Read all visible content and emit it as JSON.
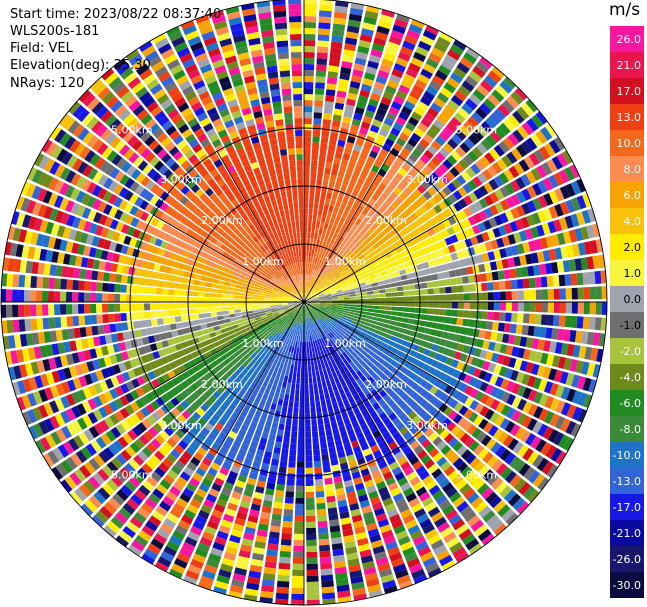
{
  "info": {
    "start_time": "Start time: 2023/08/22 08:37:40",
    "instrument": "WLS200s-181",
    "field": "Field: VEL",
    "elevation": "Elevation(deg): 35.30",
    "nrays": "NRays: 120"
  },
  "colorbar": {
    "unit": "m/s",
    "tick_labels": [
      "26.0",
      "21.0",
      "17.0",
      "13.0",
      "10.0",
      "8.0",
      "6.0",
      "4.0",
      "2.0",
      "1.0",
      "0.0",
      "-1.0",
      "-2.0",
      "-4.0",
      "-6.0",
      "-8.0",
      "-10.0",
      "-13.0",
      "-17.0",
      "-21.0",
      "-26.0",
      "-30.0"
    ],
    "colors": [
      "#f7169d",
      "#e8154f",
      "#d40f1f",
      "#ee4013",
      "#f4681b",
      "#fb8b4f",
      "#f5a403",
      "#f8c10a",
      "#ffec00",
      "#f8f63c",
      "#9ea3ad",
      "#6f6f6f",
      "#a8c43c",
      "#6e8a1a",
      "#228b22",
      "#3a8a3a",
      "#1e73c8",
      "#3264d8",
      "#1818e6",
      "#0a0aa0",
      "#17176e",
      "#0b0b40"
    ]
  },
  "chart_data": {
    "type": "heatmap",
    "subtype": "ppi_polar_doppler_velocity",
    "field": "VEL",
    "unit": "m/s",
    "nrays": 120,
    "range_rings_km": [
      1.0,
      2.0,
      3.0,
      5.0
    ],
    "ring_labels": [
      "1.00km",
      "2.00km",
      "3.00km",
      "5.00km"
    ],
    "velocity_by_azimuth_near_range": [
      {
        "direction": "north",
        "velocity_ms": 13.0
      },
      {
        "direction": "east",
        "velocity_ms": 2.0
      },
      {
        "direction": "south",
        "velocity_ms": -10.0
      },
      {
        "direction": "west",
        "velocity_ms": -2.0
      }
    ],
    "noise_beyond_km": 3.0
  }
}
